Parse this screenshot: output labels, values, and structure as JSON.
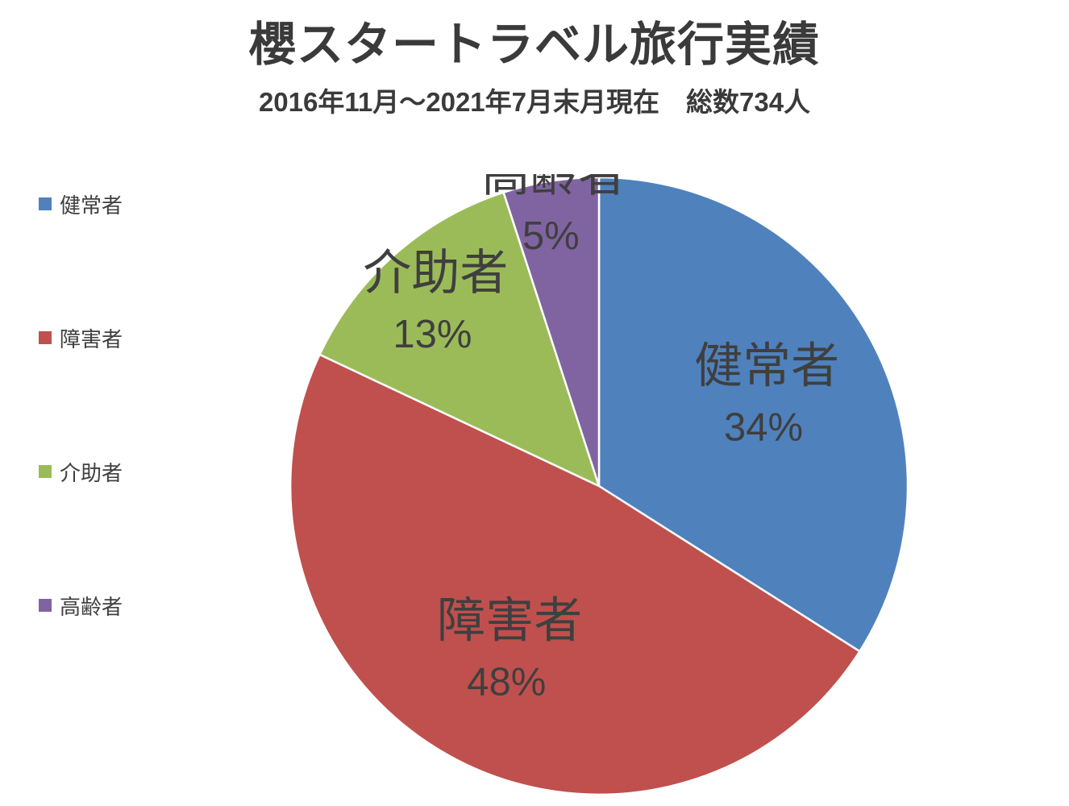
{
  "title": "櫻スタートラベル旅行実績",
  "subtitle": "2016年11月～2021年7月末月現在　総数734人",
  "legend": {
    "items": [
      {
        "label": "健常者"
      },
      {
        "label": "障害者"
      },
      {
        "label": "介助者"
      },
      {
        "label": "高齢者"
      }
    ]
  },
  "chart_data": {
    "type": "pie",
    "title": "櫻スタートラベル旅行実績",
    "subtitle": "2016年11月～2021年7月末月現在　総数734人",
    "total_label": "総数734人",
    "categories": [
      "健常者",
      "障害者",
      "介助者",
      "高齢者"
    ],
    "values": [
      34,
      48,
      13,
      5
    ],
    "unit": "%",
    "series_colors": [
      "#4f81bd",
      "#c0504d",
      "#9bbb59",
      "#8064a2"
    ],
    "start_angle_deg": 0,
    "direction": "clockwise",
    "label_radius_frac": [
      0.62,
      0.6,
      0.8,
      0.93
    ],
    "legend_position": "left",
    "slice_border_color": "#ffffff"
  }
}
